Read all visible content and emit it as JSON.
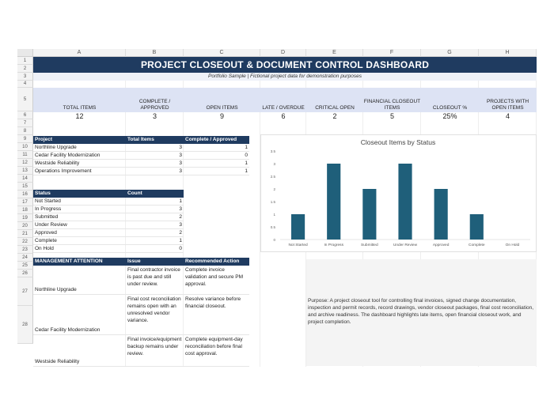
{
  "columns": [
    "A",
    "B",
    "C",
    "D",
    "E",
    "F",
    "G",
    "H"
  ],
  "rows": [
    "1",
    "2",
    "3",
    "4",
    "5",
    "6",
    "7",
    "8",
    "9",
    "10",
    "11",
    "12",
    "13",
    "14",
    "15",
    "16",
    "17",
    "18",
    "19",
    "20",
    "21",
    "22",
    "23",
    "24",
    "25",
    "26",
    "27",
    "28"
  ],
  "banner": {
    "title": "PROJECT CLOSEOUT & DOCUMENT CONTROL DASHBOARD",
    "subtitle": "Portfolio Sample | Fictional project data for demonstration purposes"
  },
  "kpis": [
    {
      "label": "TOTAL ITEMS",
      "value": "12"
    },
    {
      "label": "COMPLETE / APPROVED",
      "value": "3"
    },
    {
      "label": "OPEN ITEMS",
      "value": "9"
    },
    {
      "label": "LATE / OVERDUE",
      "value": "6"
    },
    {
      "label": "CRITICAL OPEN",
      "value": "2"
    },
    {
      "label": "FINANCIAL CLOSEOUT ITEMS",
      "value": "5"
    },
    {
      "label": "CLOSEOUT %",
      "value": "25%"
    },
    {
      "label": "PROJECTS WITH OPEN ITEMS",
      "value": "4"
    }
  ],
  "project_table": {
    "headers": [
      "Project",
      "Total Items",
      "Complete / Approved"
    ],
    "rows": [
      [
        "Northline Upgrade",
        "3",
        "1"
      ],
      [
        "Cedar Facility Modernization",
        "3",
        "0"
      ],
      [
        "Westside Reliability",
        "3",
        "1"
      ],
      [
        "Operations Improvement",
        "3",
        "1"
      ]
    ]
  },
  "status_table": {
    "headers": [
      "Status",
      "Count"
    ],
    "rows": [
      [
        "Not Started",
        "1"
      ],
      [
        "In Progress",
        "3"
      ],
      [
        "Submitted",
        "2"
      ],
      [
        "Under Review",
        "3"
      ],
      [
        "Approved",
        "2"
      ],
      [
        "Complete",
        "1"
      ],
      [
        "On Hold",
        "0"
      ]
    ]
  },
  "attention_table": {
    "headers": [
      "MANAGEMENT ATTENTION",
      "Issue",
      "Recommended Action"
    ],
    "rows": [
      [
        "Northline Upgrade",
        "Final contractor invoice is past due and still under review.",
        "Complete invoice validation and secure PM approval."
      ],
      [
        "Cedar Facility Modernization",
        "Final cost reconciliation remains open with an unresolved vendor variance.",
        "Resolve variance before financial closeout."
      ],
      [
        "Westside Reliability",
        "Final invoice/equipment backup remains under review.",
        "Complete equipment-day reconciliation before final cost approval."
      ]
    ]
  },
  "purpose_text": "Purpose: A project closeout tool for controlling final invoices, signed change documentation, inspection and permit records, record drawings, vendor closeout packages, final cost reconciliation, and archive readiness. The dashboard highlights late items, open financial closeout work, and project completion.",
  "chart_data": {
    "type": "bar",
    "title": "Closeout Items by Status",
    "categories": [
      "Not Started",
      "In Progress",
      "Submitted",
      "Under Review",
      "Approved",
      "Complete",
      "On Hold"
    ],
    "values": [
      1,
      3,
      2,
      3,
      2,
      1,
      0
    ],
    "ylim": [
      0,
      3.5
    ],
    "yticks": [
      "0",
      "0.5",
      "1",
      "1.5",
      "2",
      "2.5",
      "3",
      "3.5"
    ],
    "color": "#1f5f7a",
    "grid": false,
    "legend": "none"
  }
}
